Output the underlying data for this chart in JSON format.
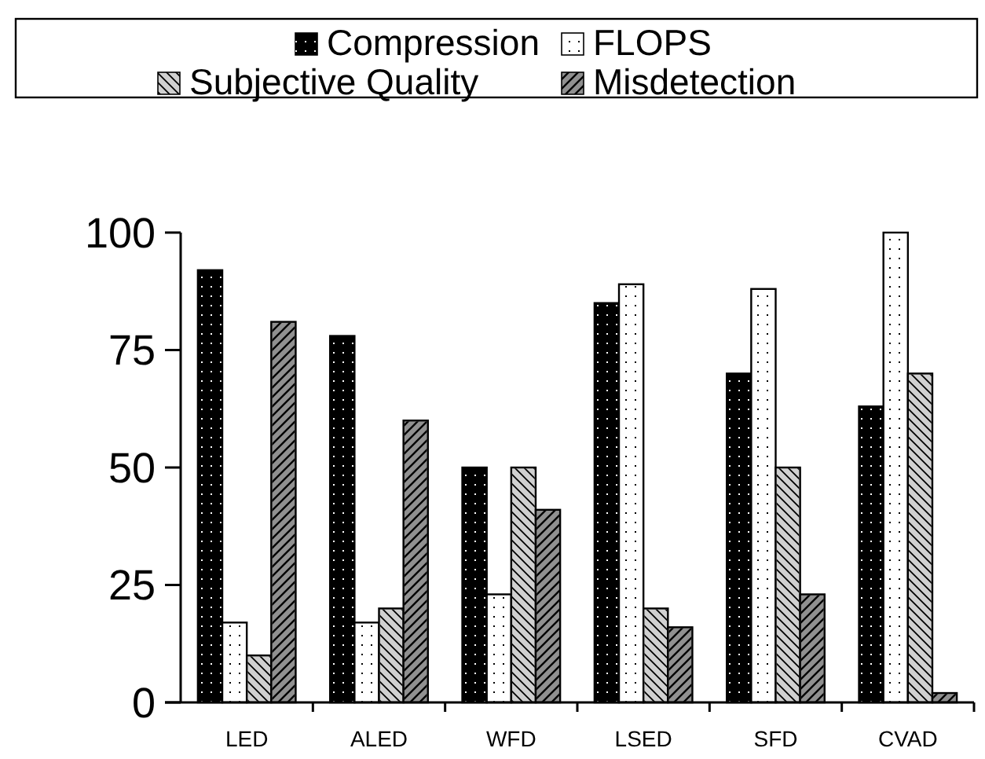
{
  "chart_data": {
    "type": "bar",
    "categories": [
      "LED",
      "ALED",
      "WFD",
      "LSED",
      "SFD",
      "CVAD"
    ],
    "series": [
      {
        "name": "Compression",
        "color": "#000000",
        "values": [
          92,
          78,
          50,
          85,
          70,
          63
        ]
      },
      {
        "name": "FLOPS",
        "color": "#ffffff",
        "values": [
          17,
          17,
          23,
          89,
          88,
          100
        ]
      },
      {
        "name": "Subjective Quality",
        "color": "#d0d0d0",
        "values": [
          10,
          20,
          50,
          20,
          50,
          70
        ]
      },
      {
        "name": "Misdetection",
        "color": "#909090",
        "values": [
          81,
          60,
          41,
          16,
          23,
          2
        ]
      }
    ],
    "ylim": [
      0,
      100
    ],
    "yticks": [
      0,
      25,
      50,
      75,
      100
    ],
    "grid": false,
    "legend": "top"
  }
}
